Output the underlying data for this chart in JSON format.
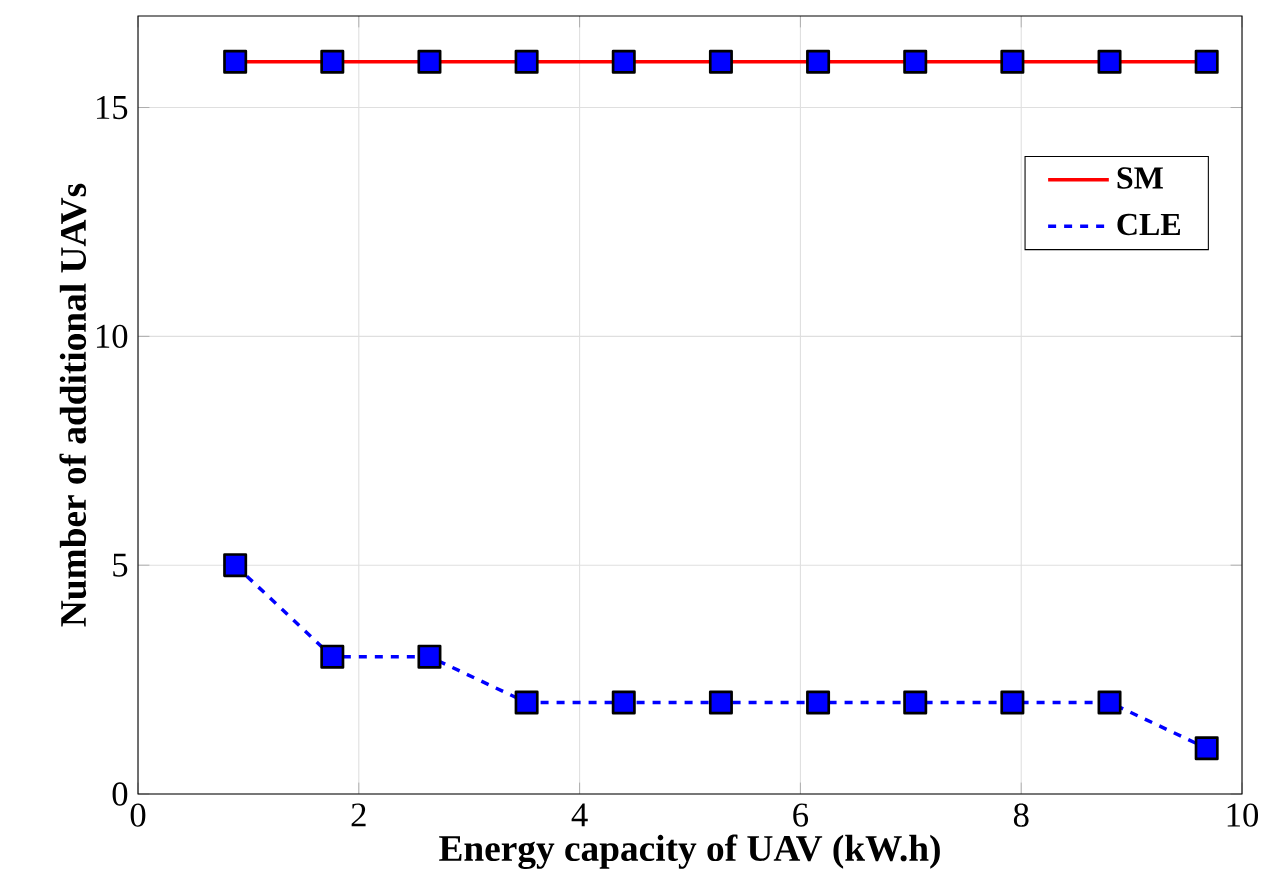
{
  "chart_data": {
    "type": "line",
    "xlabel": "Energy capacity of UAV (kW.h)",
    "ylabel": "Number of additional UAVs",
    "x": [
      0.88,
      1.76,
      2.64,
      3.52,
      4.4,
      5.28,
      6.16,
      7.04,
      7.92,
      8.8,
      9.68
    ],
    "series": [
      {
        "name": "SM",
        "color": "#ff0000",
        "line_style": "solid",
        "values": [
          16,
          16,
          16,
          16,
          16,
          16,
          16,
          16,
          16,
          16,
          16
        ]
      },
      {
        "name": "CLE",
        "color": "#0000ff",
        "line_style": "dashed",
        "values": [
          5,
          3,
          3,
          2,
          2,
          2,
          2,
          2,
          2,
          2,
          1
        ]
      }
    ],
    "xlim": [
      0,
      10
    ],
    "ylim": [
      0,
      17
    ],
    "xticks": [
      0,
      2,
      4,
      6,
      8,
      10
    ],
    "yticks": [
      0,
      5,
      10,
      15
    ],
    "grid": true,
    "legend": "top right",
    "marker": "square"
  }
}
